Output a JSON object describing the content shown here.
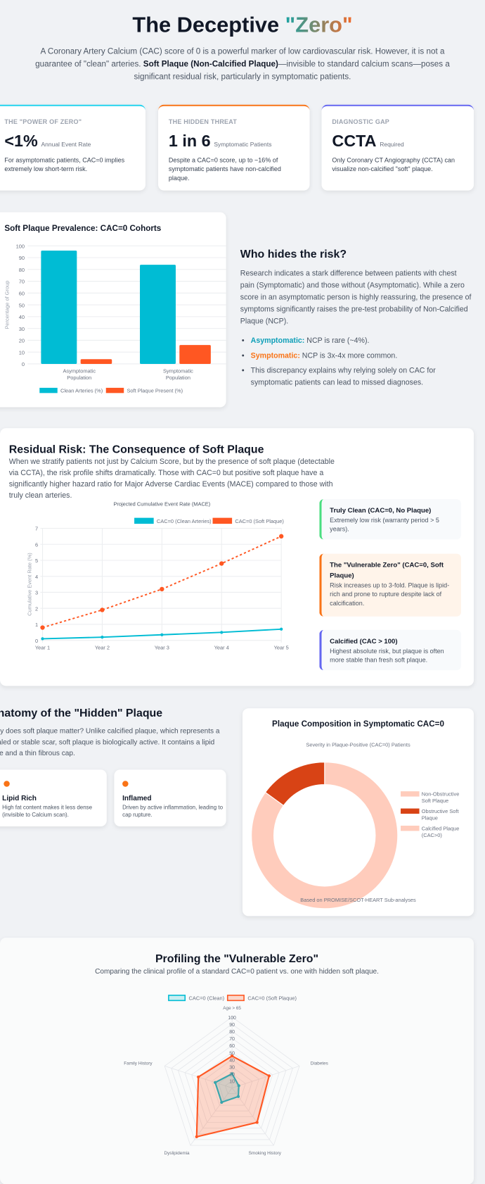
{
  "header": {
    "title_prefix": "The Deceptive ",
    "title_highlight": "\"Zero\"",
    "intro_1": "A Coronary Artery Calcium (CAC) score of 0 is a powerful marker of low cardiovascular risk. However, it is not a guarantee of \"clean\" arteries. ",
    "intro_bold": "Soft Plaque (Non-Calcified Plaque)",
    "intro_2": "—invisible to standard calcium scans—poses a significant residual risk, particularly in symptomatic patients."
  },
  "stats": [
    {
      "label": "THE \"POWER OF ZERO\"",
      "value": "<1%",
      "unit": "Annual Event Rate",
      "desc": "For asymptomatic patients, CAC=0 implies extremely low short-term risk.",
      "color": "#22d3ee"
    },
    {
      "label": "THE HIDDEN THREAT",
      "value": "1 in 6",
      "unit": "Symptomatic Patients",
      "desc": "Despite a CAC=0 score, up to ~16% of symptomatic patients have non-calcified plaque.",
      "color": "#f97316"
    },
    {
      "label": "DIAGNOSTIC GAP",
      "value": "CCTA",
      "unit": "Required",
      "desc": "Only Coronary CT Angiography (CCTA) can visualize non-calcified \"soft\" plaque.",
      "color": "#6366f1"
    }
  ],
  "prevalence": {
    "title": "Soft Plaque Prevalence: CAC=0 Cohorts"
  },
  "who": {
    "title": "Who hides the risk?",
    "body": "Research indicates a stark difference between patients with chest pain (Symptomatic) and those without (Asymptomatic). While a zero score in an asymptomatic person is highly reassuring, the presence of symptoms significantly raises the pre-test probability of Non-Calcified Plaque (NCP).",
    "bullets": [
      {
        "label": "Asymptomatic:",
        "text": " NCP is rare (~4%).",
        "color": "#0e9fb8"
      },
      {
        "label": "Symptomatic:",
        "text": " NCP is 3x-4x more common.",
        "color": "#f97316"
      },
      {
        "label": "",
        "text": "This discrepancy explains why relying solely on CAC for symptomatic patients can lead to missed diagnoses.",
        "color": ""
      }
    ]
  },
  "residual": {
    "title": "Residual Risk: The Consequence of Soft Plaque",
    "body": "When we stratify patients not just by Calcium Score, but by the presence of soft plaque (detectable via CCTA), the risk profile shifts dramatically. Those with CAC=0 but positive soft plaque have a significantly higher hazard ratio for Major Adverse Cardiac Events (MACE) compared to those with truly clean arteries.",
    "cards": [
      {
        "title": "Truly Clean (CAC=0, No Plaque)",
        "text": "Extremely low risk (warranty period > 5 years)."
      },
      {
        "title": "The \"Vulnerable Zero\" (CAC=0, Soft Plaque)",
        "text": "Risk increases up to 3-fold. Plaque is lipid-rich and prone to rupture despite lack of calcification."
      },
      {
        "title": "Calcified (CAC > 100)",
        "text": "Highest absolute risk, but plaque is often more stable than fresh soft plaque."
      }
    ]
  },
  "anatomy": {
    "title": "Anatomy of the \"Hidden\" Plaque",
    "body": "Why does soft plaque matter? Unlike calcified plaque, which represents a healed or stable scar, soft plaque is biologically active. It contains a lipid core and a thin fibrous cap.",
    "cards": [
      {
        "title": "Lipid Rich",
        "text": "High fat content makes it less dense (invisible to Calcium scan)."
      },
      {
        "title": "Inflamed",
        "text": "Driven by active inflammation, leading to cap rupture."
      }
    ]
  },
  "composition": {
    "title": "Plaque Composition in Symptomatic CAC=0",
    "footnote": "Based on PROMISE/SCOT-HEART Sub-analyses"
  },
  "profile": {
    "title": "Profiling the \"Vulnerable Zero\"",
    "subtitle": "Comparing the clinical profile of a standard CAC=0 patient vs. one with hidden soft plaque."
  },
  "chart_data": [
    {
      "type": "bar",
      "categories": [
        "Asymptomatic Population",
        "Symptomatic Population"
      ],
      "ylabel": "Percentage of Group",
      "ylim": [
        0,
        100
      ],
      "yticks": [
        0,
        10,
        20,
        30,
        40,
        50,
        60,
        70,
        80,
        90,
        100
      ],
      "grid": true,
      "legend": "bottom",
      "series": [
        {
          "name": "Clean Arteries (%)",
          "values": [
            96,
            84
          ],
          "color": "#00bcd4"
        },
        {
          "name": "Soft Plaque Present (%)",
          "values": [
            4,
            16
          ],
          "color": "#ff5722"
        }
      ]
    },
    {
      "type": "line",
      "title": "Projected Cumulative Event Rate (MACE)",
      "ylabel": "Cumulative Event Rate (%)",
      "categories": [
        "Year 1",
        "Year 2",
        "Year 3",
        "Year 4",
        "Year 5"
      ],
      "ylim": [
        0,
        7
      ],
      "yticks": [
        0,
        1,
        2,
        3,
        4,
        5,
        6,
        7
      ],
      "grid": true,
      "legend": "top",
      "series": [
        {
          "name": "CAC=0 (Clean Arteries)",
          "values": [
            0.1,
            0.2,
            0.35,
            0.5,
            0.7
          ],
          "color": "#00bcd4"
        },
        {
          "name": "CAC=0 (Soft Plaque)",
          "values": [
            0.8,
            1.9,
            3.2,
            4.8,
            6.5
          ],
          "color": "#ff5722",
          "dashed": true
        }
      ]
    },
    {
      "type": "pie",
      "subtitle": "Severity in Plaque-Positive (CAC=0) Patients",
      "legend": "right",
      "donut": true,
      "labels": [
        "Non-Obstructive Soft Plaque",
        "Obstructive Soft Plaque",
        "Calcified Plaque (CAC>0)"
      ],
      "values": [
        85,
        15,
        0
      ],
      "colors": [
        "#ffccbc",
        "#d84315",
        "#ffccbc"
      ]
    },
    {
      "type": "radar",
      "categories": [
        "Age > 65",
        "Diabetes",
        "Smoking History",
        "Dyslipidemia",
        "Family History"
      ],
      "rlim": [
        0,
        100
      ],
      "rticks": [
        10,
        20,
        30,
        40,
        50,
        60,
        70,
        80,
        90,
        100
      ],
      "legend": "top",
      "series": [
        {
          "name": "CAC=0 (Clean)",
          "values": [
            20,
            10,
            15,
            25,
            25
          ],
          "color": "#00bcd4"
        },
        {
          "name": "CAC=0 (Soft Plaque)",
          "values": [
            45,
            55,
            60,
            85,
            50
          ],
          "color": "#ff5722"
        }
      ]
    }
  ]
}
